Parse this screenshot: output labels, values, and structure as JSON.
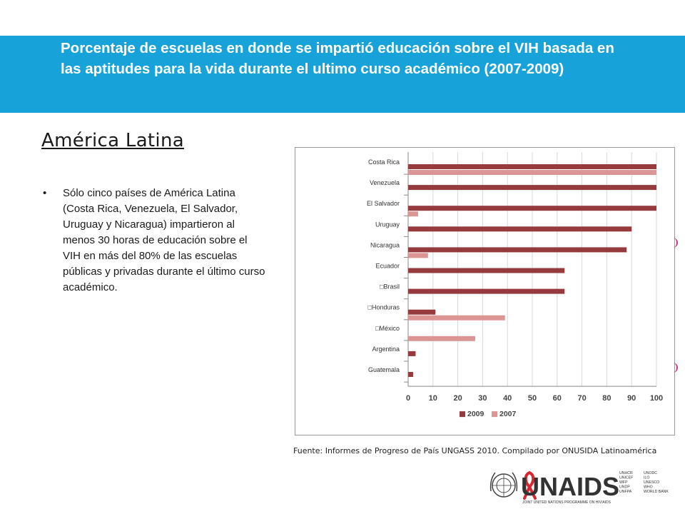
{
  "header": {
    "title": "Porcentaje de escuelas en donde se impartió educación sobre el VIH basada en las aptitudes para la vida durante el ultimo curso académico (2007-2009)"
  },
  "section": {
    "title": "América Latina"
  },
  "body": {
    "bullets": [
      {
        "marker": "•",
        "text": "Sólo cinco países de América Latina (Costa Rica, Venezuela, El Salvador, Uruguay y Nicaragua) impartieron al menos 30 horas de educación sobre el VIH en más del 80% de las escuelas públicas y privadas durante el último curso académico."
      }
    ]
  },
  "source": "Fuente: Informes de Progreso de País UNGASS 2010. Compilado por ONUSIDA Latinoamérica",
  "logo": {
    "name": "UNAIDS",
    "subtitle": "JOINT UNITED NATIONS PROGRAMME ON HIV/AIDS",
    "cosponsors_col1": [
      "UNHCR",
      "UNICEF",
      "WFP",
      "UNDP",
      "UNFPA"
    ],
    "cosponsors_col2": [
      "UNODC",
      "ILO",
      "UNESCO",
      "WHO",
      "WORLD BANK"
    ],
    "ribbon_color": "#d7262e"
  },
  "colors": {
    "banner": "#17a3d9",
    "series_2009": "#963a3e",
    "series_2007": "#dc9595"
  },
  "chart_data": {
    "type": "bar",
    "orientation": "horizontal",
    "categories": [
      "Costa Rica",
      "Venezuela",
      "El Salvador",
      "Uruguay",
      "Nicaragua",
      "Ecuador",
      "□Brasil",
      "□Honduras",
      "□México",
      "Argentina",
      "Guatemala"
    ],
    "series": [
      {
        "name": "2009",
        "color": "#963a3e",
        "values": [
          100,
          100,
          100,
          90,
          88,
          63,
          63,
          11,
          null,
          3,
          2
        ]
      },
      {
        "name": "2007",
        "color": "#dc9595",
        "values": [
          100,
          null,
          4,
          null,
          8,
          null,
          null,
          39,
          27,
          null,
          null
        ]
      }
    ],
    "xlim": [
      0,
      100
    ],
    "xticks": [
      0,
      10,
      20,
      30,
      40,
      50,
      60,
      70,
      80,
      90,
      100
    ],
    "grid": "vertical",
    "legend": "bottom-center"
  }
}
